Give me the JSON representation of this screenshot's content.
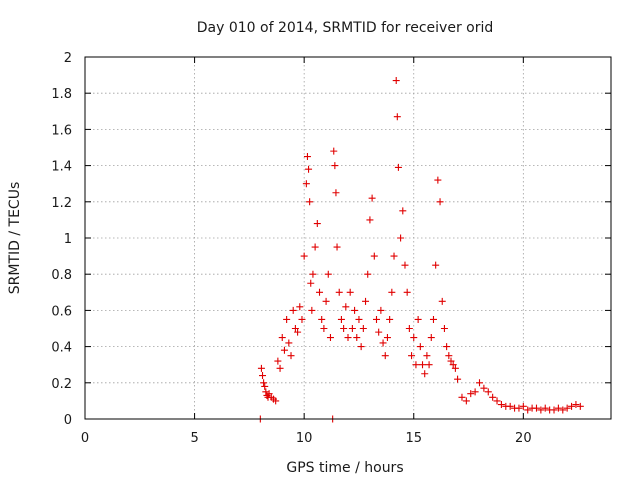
{
  "chart_data": {
    "type": "scatter",
    "title": "Day 010 of 2014, SRMTID for receiver orid",
    "xlabel": "GPS time / hours",
    "ylabel": "SRMTID / TECUs",
    "xlim": [
      0,
      24
    ],
    "ylim": [
      0,
      2
    ],
    "xticks": [
      0,
      5,
      10,
      15,
      20
    ],
    "yticks": [
      0,
      0.2,
      0.4,
      0.6,
      0.8,
      1,
      1.2,
      1.4,
      1.6,
      1.8,
      2
    ],
    "grid": true,
    "marker": "plus",
    "color": "#e00000",
    "series": [
      {
        "name": "SRMTID",
        "x": [
          8.0,
          11.3,
          8.05,
          8.1,
          8.15,
          8.2,
          8.25,
          8.3,
          8.35,
          8.4,
          8.5,
          8.6,
          8.7,
          8.8,
          8.9,
          9.0,
          9.1,
          9.2,
          9.3,
          9.4,
          9.5,
          9.6,
          9.7,
          9.8,
          9.9,
          10.0,
          10.1,
          10.15,
          10.2,
          10.25,
          10.3,
          10.35,
          10.4,
          10.5,
          10.6,
          10.7,
          10.8,
          10.9,
          11.0,
          11.1,
          11.2,
          11.35,
          11.4,
          11.45,
          11.5,
          11.6,
          11.7,
          11.8,
          11.9,
          12.0,
          12.1,
          12.2,
          12.3,
          12.4,
          12.5,
          12.6,
          12.7,
          12.8,
          12.9,
          13.0,
          13.1,
          13.2,
          13.3,
          13.4,
          13.5,
          13.6,
          13.7,
          13.8,
          13.9,
          14.0,
          14.1,
          14.2,
          14.25,
          14.3,
          14.4,
          14.5,
          14.6,
          14.7,
          14.8,
          14.9,
          15.0,
          15.1,
          15.2,
          15.3,
          15.4,
          15.5,
          15.6,
          15.7,
          15.8,
          15.9,
          16.0,
          16.1,
          16.2,
          16.3,
          16.4,
          16.5,
          16.6,
          16.7,
          16.8,
          16.9,
          17.0,
          17.2,
          17.4,
          17.6,
          17.8,
          18.0,
          18.2,
          18.4,
          18.6,
          18.8,
          19.0,
          19.2,
          19.4,
          19.6,
          19.8,
          20.0,
          20.2,
          20.4,
          20.6,
          20.8,
          21.0,
          21.2,
          21.4,
          21.6,
          21.8,
          22.0,
          22.2,
          22.4,
          22.6
        ],
        "y": [
          0.0,
          0.0,
          0.28,
          0.24,
          0.2,
          0.18,
          0.15,
          0.13,
          0.12,
          0.14,
          0.12,
          0.11,
          0.1,
          0.32,
          0.28,
          0.45,
          0.38,
          0.55,
          0.42,
          0.35,
          0.6,
          0.5,
          0.48,
          0.62,
          0.55,
          0.9,
          1.3,
          1.45,
          1.38,
          1.2,
          0.75,
          0.6,
          0.8,
          0.95,
          1.08,
          0.7,
          0.55,
          0.5,
          0.65,
          0.8,
          0.45,
          1.48,
          1.4,
          1.25,
          0.95,
          0.7,
          0.55,
          0.5,
          0.62,
          0.45,
          0.7,
          0.5,
          0.6,
          0.45,
          0.55,
          0.4,
          0.5,
          0.65,
          0.8,
          1.1,
          1.22,
          0.9,
          0.55,
          0.48,
          0.6,
          0.42,
          0.35,
          0.45,
          0.55,
          0.7,
          0.9,
          1.87,
          1.67,
          1.39,
          1.0,
          1.15,
          0.85,
          0.7,
          0.5,
          0.35,
          0.45,
          0.3,
          0.55,
          0.4,
          0.3,
          0.25,
          0.35,
          0.3,
          0.45,
          0.55,
          0.85,
          1.32,
          1.2,
          0.65,
          0.5,
          0.4,
          0.35,
          0.32,
          0.3,
          0.28,
          0.22,
          0.12,
          0.1,
          0.14,
          0.15,
          0.2,
          0.17,
          0.15,
          0.12,
          0.1,
          0.08,
          0.07,
          0.07,
          0.06,
          0.06,
          0.07,
          0.05,
          0.06,
          0.06,
          0.05,
          0.06,
          0.05,
          0.05,
          0.06,
          0.05,
          0.06,
          0.07,
          0.08,
          0.07
        ]
      }
    ]
  }
}
